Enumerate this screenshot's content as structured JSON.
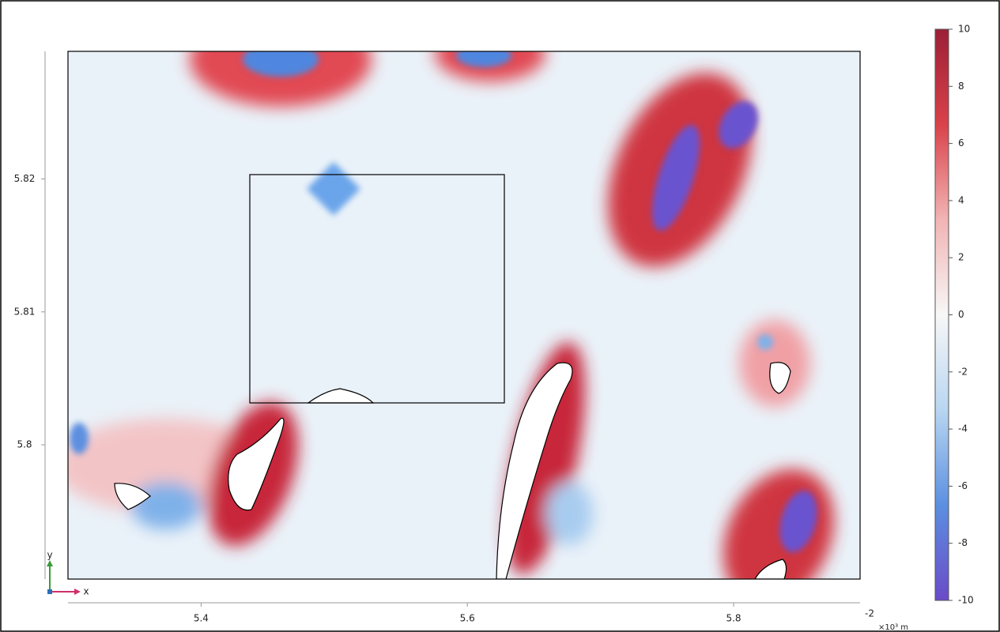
{
  "chart_data": {
    "type": "surface",
    "xlim": [
      5.3,
      5.895
    ],
    "ylim": [
      5.7899,
      5.8296
    ],
    "xticks": [
      5.4,
      5.6,
      5.8
    ],
    "yticks": [
      5.8,
      5.81,
      5.82
    ],
    "x_exponent": "-2",
    "x_unit": "×10³ m",
    "axis_triad": {
      "x": "x",
      "y": "y"
    },
    "colorbar": {
      "lim": [
        -10,
        10
      ],
      "ticks": [
        10,
        8,
        6,
        4,
        2,
        0,
        -2,
        -4,
        -6,
        -8,
        -10
      ],
      "colors": [
        "#6a4bc8",
        "#5b8fe0",
        "#b9d6f1",
        "#f7f7f7",
        "#f2b4b4",
        "#d9424a",
        "#9c1f36"
      ]
    }
  }
}
